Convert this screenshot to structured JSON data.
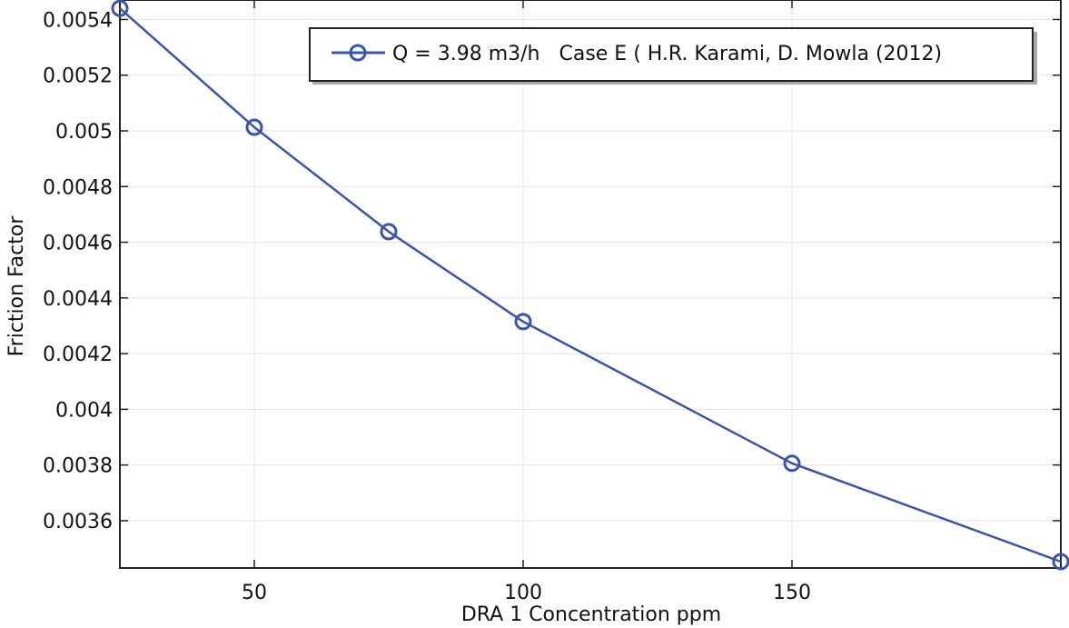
{
  "chart_data": {
    "type": "line",
    "title": "",
    "xlabel": "DRA 1 Concentration ppm",
    "ylabel": "Friction Factor",
    "xlim": [
      25,
      200
    ],
    "ylim": [
      0.00343,
      0.00547
    ],
    "xticks": [
      50,
      100,
      150
    ],
    "xtick_labels": [
      "50",
      "100",
      "150"
    ],
    "yticks": [
      0.0036,
      0.0038,
      0.004,
      0.0042,
      0.0044,
      0.0046,
      0.0048,
      0.005,
      0.0052,
      0.0054
    ],
    "ytick_labels": [
      "0.0036",
      "0.0038",
      "0.004",
      "0.0042",
      "0.0044",
      "0.0046",
      "0.0048",
      "0.005",
      "0.0052",
      "0.0054"
    ],
    "grid": true,
    "legend_position": "top-right",
    "series": [
      {
        "name": "Q = 3.98 m3/h   Case E ( H.R. Karami, D. Mowla (2012)",
        "color": "#3a55a8",
        "marker": "open-circle",
        "x": [
          25,
          50,
          75,
          100,
          150,
          200
        ],
        "y": [
          0.00544,
          0.005013,
          0.004638,
          0.004315,
          0.003806,
          0.003453
        ]
      }
    ]
  }
}
